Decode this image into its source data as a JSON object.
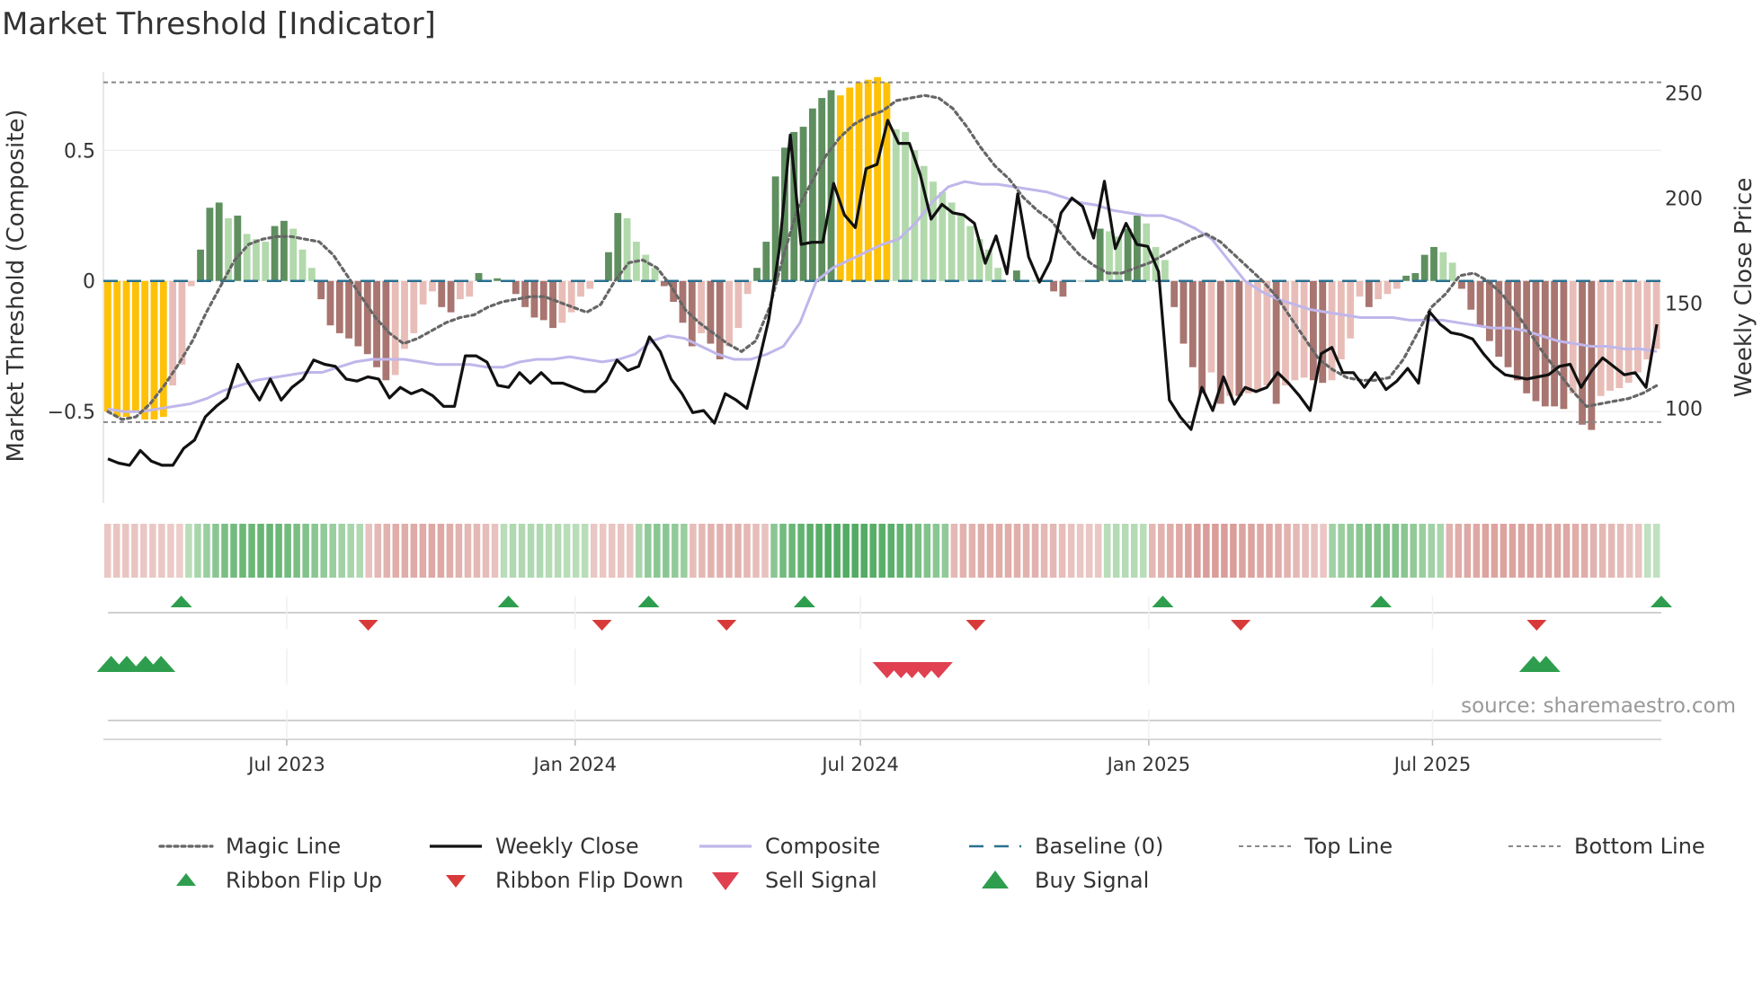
{
  "chart_data": {
    "type": "line+bar",
    "title": "Market Threshold [Indicator]",
    "ylabel_left": "Market Threshold (Composite)",
    "ylabel_right": "Weekly Close Price",
    "source": "source: sharemaestro.com",
    "left_axis": {
      "ylim": [
        -0.85,
        0.8
      ],
      "ticks": [
        -0.5,
        0,
        0.5
      ],
      "tick_labels": [
        "−0.5",
        "0",
        "0.5"
      ]
    },
    "right_axis": {
      "ylim": [
        55,
        260
      ],
      "ticks": [
        100,
        150,
        200,
        250
      ],
      "tick_labels": [
        "100",
        "150",
        "200",
        "250"
      ]
    },
    "top_line": 0.76,
    "bottom_line": -0.54,
    "x_start": "2023-03-06",
    "x_end": "2025-11-24",
    "x_ticks": [
      {
        "date": "2023-07-01",
        "label": "Jul 2023"
      },
      {
        "date": "2024-01-01",
        "label": "Jan 2024"
      },
      {
        "date": "2024-07-01",
        "label": "Jul 2024"
      },
      {
        "date": "2025-01-01",
        "label": "Jan 2025"
      },
      {
        "date": "2025-07-01",
        "label": "Jul 2025"
      }
    ],
    "colors": {
      "bar_dark_green": "#5f8f5f",
      "bar_light_green": "#b2d9ab",
      "bar_dark_red": "#a87570",
      "bar_light_red": "#e8bdb8",
      "bar_extreme": "#ffc107",
      "weekly_close": "#111111",
      "composite": "#c0b6ea",
      "magic": "#666666",
      "baseline": "#2a7090",
      "flip_up": "#2e9e4e",
      "flip_down": "#d83a3a",
      "sell": "#e04050",
      "buy": "#2e9e4e"
    },
    "series": [
      {
        "name": "Composite Bars",
        "values": [
          -0.5,
          -0.52,
          -0.52,
          -0.5,
          -0.53,
          -0.53,
          -0.52,
          -0.4,
          -0.32,
          -0.02,
          0.12,
          0.28,
          0.3,
          0.24,
          0.25,
          0.18,
          0.16,
          0.15,
          0.21,
          0.23,
          0.2,
          0.12,
          0.05,
          -0.07,
          -0.17,
          -0.2,
          -0.22,
          -0.25,
          -0.28,
          -0.33,
          -0.38,
          -0.36,
          -0.26,
          -0.2,
          -0.09,
          -0.04,
          -0.1,
          -0.12,
          -0.07,
          -0.06,
          0.03,
          0.0,
          0.01,
          0.0,
          -0.05,
          -0.1,
          -0.14,
          -0.15,
          -0.18,
          -0.16,
          -0.12,
          -0.06,
          -0.03,
          0.0,
          0.11,
          0.26,
          0.24,
          0.15,
          0.1,
          0.05,
          -0.02,
          -0.08,
          -0.16,
          -0.25,
          -0.2,
          -0.24,
          -0.3,
          -0.25,
          -0.18,
          -0.05,
          0.05,
          0.15,
          0.4,
          0.51,
          0.57,
          0.59,
          0.66,
          0.7,
          0.73,
          0.71,
          0.74,
          0.76,
          0.77,
          0.78,
          0.76,
          0.58,
          0.57,
          0.5,
          0.44,
          0.38,
          0.34,
          0.3,
          0.25,
          0.21,
          0.16,
          0.12,
          0.05,
          0.0,
          0.04,
          0.0,
          0.0,
          0.0,
          -0.04,
          -0.06,
          0.0,
          0.0,
          0.0,
          0.2,
          0.19,
          0.17,
          0.2,
          0.25,
          0.22,
          0.13,
          0.08,
          -0.1,
          -0.24,
          -0.33,
          -0.43,
          -0.35,
          -0.47,
          -0.44,
          -0.44,
          -0.43,
          -0.42,
          -0.4,
          -0.47,
          -0.4,
          -0.38,
          -0.37,
          -0.38,
          -0.39,
          -0.38,
          -0.3,
          -0.22,
          -0.06,
          -0.1,
          -0.07,
          -0.05,
          -0.03,
          0.02,
          0.03,
          0.1,
          0.13,
          0.11,
          0.07,
          -0.03,
          -0.11,
          -0.17,
          -0.23,
          -0.29,
          -0.33,
          -0.38,
          -0.43,
          -0.46,
          -0.48,
          -0.48,
          -0.49,
          -0.43,
          -0.55,
          -0.57,
          -0.44,
          -0.42,
          -0.41,
          -0.39,
          -0.35,
          -0.3,
          -0.26
        ]
      },
      {
        "name": "Weekly Close",
        "values": [
          76,
          74,
          73,
          80,
          75,
          73,
          73,
          81,
          85,
          96,
          101,
          105,
          121,
          112,
          104,
          114,
          104,
          110,
          114,
          123,
          121,
          120,
          114,
          113,
          115,
          114,
          105,
          110,
          107,
          109,
          106,
          101,
          101,
          125,
          125,
          122,
          111,
          110,
          117,
          112,
          117,
          112,
          112,
          110,
          108,
          108,
          113,
          123,
          118,
          120,
          134,
          127,
          114,
          107,
          98,
          99,
          93,
          107,
          104,
          100,
          120,
          142,
          176,
          230,
          178,
          179,
          179,
          207,
          192,
          186,
          214,
          216,
          237,
          226,
          226,
          211,
          190,
          197,
          193,
          192,
          188,
          169,
          182,
          164,
          202,
          172,
          160,
          170,
          193,
          200,
          196,
          181,
          208,
          176,
          188,
          178,
          177,
          165,
          104,
          96,
          90,
          110,
          99,
          115,
          102,
          110,
          108,
          110,
          117,
          112,
          106,
          99,
          126,
          129,
          117,
          117,
          110,
          117,
          109,
          113,
          119,
          112,
          146,
          140,
          136,
          135,
          133,
          126,
          120,
          116,
          115,
          114,
          115,
          116,
          120,
          121,
          110,
          118,
          124,
          120,
          116,
          117,
          110,
          140
        ]
      },
      {
        "name": "Composite",
        "values": [
          -0.49,
          -0.5,
          -0.5,
          -0.49,
          -0.48,
          -0.47,
          -0.45,
          -0.42,
          -0.4,
          -0.38,
          -0.37,
          -0.36,
          -0.35,
          -0.35,
          -0.33,
          -0.31,
          -0.3,
          -0.3,
          -0.3,
          -0.31,
          -0.32,
          -0.32,
          -0.32,
          -0.33,
          -0.33,
          -0.31,
          -0.3,
          -0.3,
          -0.29,
          -0.3,
          -0.31,
          -0.3,
          -0.28,
          -0.23,
          -0.21,
          -0.22,
          -0.25,
          -0.28,
          -0.3,
          -0.3,
          -0.28,
          -0.25,
          -0.16,
          0.0,
          0.05,
          0.08,
          0.11,
          0.14,
          0.16,
          0.22,
          0.3,
          0.36,
          0.38,
          0.37,
          0.37,
          0.36,
          0.35,
          0.34,
          0.32,
          0.3,
          0.29,
          0.27,
          0.26,
          0.25,
          0.25,
          0.23,
          0.2,
          0.16,
          0.08,
          0.0,
          -0.04,
          -0.07,
          -0.09,
          -0.11,
          -0.12,
          -0.13,
          -0.14,
          -0.14,
          -0.14,
          -0.15,
          -0.15,
          -0.15,
          -0.16,
          -0.17,
          -0.18,
          -0.18,
          -0.19,
          -0.21,
          -0.23,
          -0.24,
          -0.25,
          -0.25,
          -0.26,
          -0.26,
          -0.27
        ]
      },
      {
        "name": "Magic Line",
        "values": [
          -0.5,
          -0.53,
          -0.52,
          -0.47,
          -0.4,
          -0.32,
          -0.23,
          -0.12,
          -0.02,
          0.08,
          0.14,
          0.16,
          0.17,
          0.17,
          0.16,
          0.15,
          0.1,
          0.02,
          -0.06,
          -0.14,
          -0.2,
          -0.24,
          -0.22,
          -0.19,
          -0.16,
          -0.14,
          -0.13,
          -0.1,
          -0.08,
          -0.07,
          -0.06,
          -0.06,
          -0.08,
          -0.1,
          -0.12,
          -0.09,
          0.0,
          0.07,
          0.08,
          0.05,
          -0.02,
          -0.11,
          -0.16,
          -0.2,
          -0.24,
          -0.27,
          -0.23,
          -0.1,
          0.1,
          0.28,
          0.38,
          0.48,
          0.55,
          0.6,
          0.63,
          0.65,
          0.69,
          0.7,
          0.71,
          0.7,
          0.66,
          0.59,
          0.51,
          0.44,
          0.39,
          0.32,
          0.27,
          0.23,
          0.16,
          0.1,
          0.06,
          0.03,
          0.03,
          0.05,
          0.07,
          0.1,
          0.13,
          0.16,
          0.18,
          0.15,
          0.1,
          0.05,
          0.0,
          -0.06,
          -0.14,
          -0.22,
          -0.3,
          -0.34,
          -0.37,
          -0.38,
          -0.38,
          -0.37,
          -0.3,
          -0.2,
          -0.1,
          -0.05,
          0.02,
          0.03,
          0.0,
          -0.05,
          -0.12,
          -0.2,
          -0.28,
          -0.35,
          -0.42,
          -0.48,
          -0.47,
          -0.46,
          -0.45,
          -0.43,
          -0.4
        ]
      }
    ],
    "ribbon": [
      -0.15,
      -0.17,
      -0.17,
      -0.17,
      -0.15,
      -0.15,
      -0.15,
      -0.12,
      -0.1,
      0.2,
      0.3,
      0.4,
      0.5,
      0.6,
      0.65,
      0.7,
      0.7,
      0.72,
      0.72,
      0.7,
      0.65,
      0.6,
      0.55,
      0.5,
      0.45,
      0.4,
      0.35,
      0.3,
      0.25,
      -0.2,
      -0.3,
      -0.35,
      -0.4,
      -0.4,
      -0.42,
      -0.42,
      -0.45,
      -0.45,
      -0.4,
      -0.35,
      -0.3,
      -0.3,
      -0.25,
      -0.2,
      0.2,
      0.25,
      0.25,
      0.25,
      0.25,
      0.22,
      0.22,
      0.2,
      0.2,
      0.2,
      -0.15,
      -0.15,
      -0.18,
      -0.18,
      -0.15,
      0.3,
      0.45,
      0.5,
      0.5,
      0.45,
      0.4,
      -0.25,
      -0.3,
      -0.35,
      -0.35,
      -0.35,
      -0.35,
      -0.3,
      -0.25,
      -0.2,
      0.5,
      0.65,
      0.7,
      0.75,
      0.8,
      0.82,
      0.85,
      0.85,
      0.85,
      0.85,
      0.85,
      0.82,
      0.8,
      0.8,
      0.75,
      0.7,
      0.6,
      0.55,
      0.5,
      0.45,
      -0.3,
      -0.35,
      -0.35,
      -0.4,
      -0.4,
      -0.4,
      -0.4,
      -0.38,
      -0.35,
      -0.35,
      -0.3,
      -0.3,
      -0.25,
      -0.2,
      -0.15,
      -0.15,
      -0.15,
      0.2,
      0.22,
      0.22,
      0.22,
      0.2,
      -0.3,
      -0.35,
      -0.4,
      -0.45,
      -0.5,
      -0.55,
      -0.55,
      -0.55,
      -0.55,
      -0.55,
      -0.5,
      -0.5,
      -0.45,
      -0.45,
      -0.4,
      -0.35,
      -0.3,
      -0.25,
      -0.2,
      -0.15,
      0.35,
      0.4,
      0.45,
      0.5,
      0.55,
      0.55,
      0.55,
      0.55,
      0.5,
      0.45,
      0.4,
      0.35,
      0.3,
      -0.35,
      -0.4,
      -0.45,
      -0.45,
      -0.5,
      -0.5,
      -0.5,
      -0.5,
      -0.5,
      -0.5,
      -0.45,
      -0.45,
      -0.45,
      -0.45,
      -0.4,
      -0.4,
      -0.35,
      -0.3,
      -0.3,
      -0.25,
      -0.2,
      -0.18,
      0.15,
      0.15
    ],
    "ribbon_flip_up": [
      0.05,
      0.26,
      0.35,
      0.45,
      0.68,
      0.82,
      1.0
    ],
    "ribbon_flip_down": [
      0.17,
      0.32,
      0.4,
      0.56,
      0.73,
      0.92
    ],
    "buy_signals": [
      0.005,
      0.015,
      0.027,
      0.037,
      0.918,
      0.926
    ],
    "sell_signals": [
      0.503,
      0.512,
      0.519,
      0.527,
      0.536
    ],
    "legend": [
      {
        "label": "Magic Line",
        "kind": "dotted-line",
        "color": "#666666"
      },
      {
        "label": "Weekly Close",
        "kind": "solid-line",
        "color": "#111111"
      },
      {
        "label": "Composite",
        "kind": "solid-line",
        "color": "#c0b6ea"
      },
      {
        "label": "Baseline (0)",
        "kind": "dashed-line",
        "color": "#2a7090"
      },
      {
        "label": "Top Line",
        "kind": "dashed-thin",
        "color": "#888888"
      },
      {
        "label": "Bottom Line",
        "kind": "dashed-thin",
        "color": "#888888"
      },
      {
        "label": "Ribbon Flip Up",
        "kind": "up-triangle",
        "color": "#2e9e4e"
      },
      {
        "label": "Ribbon Flip Down",
        "kind": "down-triangle",
        "color": "#d83a3a"
      },
      {
        "label": "Sell Signal",
        "kind": "down-triangle-big",
        "color": "#e04050"
      },
      {
        "label": "Buy Signal",
        "kind": "up-triangle-big",
        "color": "#2e9e4e"
      }
    ]
  }
}
